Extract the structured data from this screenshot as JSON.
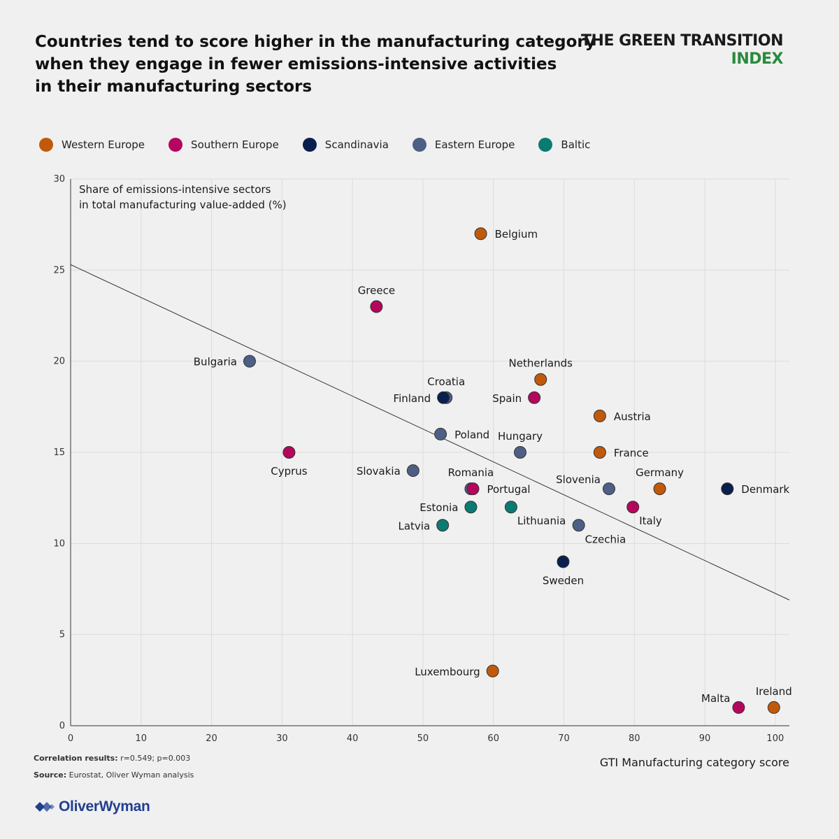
{
  "header": {
    "title_lines": [
      "Countries tend to score higher in the manufacturing category",
      "when they engage in fewer emissions-intensive activities",
      "in their manufacturing sectors"
    ],
    "brand_line1": "THE GREEN TRANSITION",
    "brand_line2": "INDEX"
  },
  "legend": [
    {
      "label": "Western Europe",
      "color": "#c05a0a"
    },
    {
      "label": "Southern Europe",
      "color": "#b5065e"
    },
    {
      "label": "Scandinavia",
      "color": "#0a1f4e"
    },
    {
      "label": "Eastern Europe",
      "color": "#4e5f86"
    },
    {
      "label": "Baltic",
      "color": "#0a7b72"
    }
  ],
  "footer": {
    "correlation_label": "Correlation results:",
    "correlation_value": "r=0.549; p=0.003",
    "source_label": "Source:",
    "source_value": "Eurostat, Oliver Wyman analysis",
    "logo_text": "OliverWyman"
  },
  "chart_data": {
    "type": "scatter",
    "title": "Countries tend to score higher in the manufacturing category when they engage in fewer emissions-intensive activities in their manufacturing sectors",
    "xlabel": "GTI Manufacturing category score",
    "ylabel": "Share of emissions-intensive sectors in total manufacturing value-added (%)",
    "ylabel_lines": [
      "Share of emissions-intensive sectors",
      "in total manufacturing value-added (%)"
    ],
    "xlim": [
      0,
      102
    ],
    "ylim": [
      0,
      30
    ],
    "xticks": [
      0,
      10,
      20,
      30,
      40,
      50,
      60,
      70,
      80,
      90,
      100
    ],
    "yticks": [
      0,
      5,
      10,
      15,
      20,
      25,
      30
    ],
    "grid": true,
    "trendline": {
      "x": [
        0,
        102
      ],
      "y": [
        25.3,
        6.9
      ]
    },
    "colors": {
      "Western Europe": "#c05a0a",
      "Southern Europe": "#b5065e",
      "Scandinavia": "#0a1f4e",
      "Eastern Europe": "#4e5f86",
      "Baltic": "#0a7b72"
    },
    "points": [
      {
        "country": "Belgium",
        "group": "Western Europe",
        "x": 58.2,
        "y": 27.0,
        "label_pos": "right"
      },
      {
        "country": "Greece",
        "group": "Southern Europe",
        "x": 43.4,
        "y": 23.0,
        "label_pos": "top"
      },
      {
        "country": "Bulgaria",
        "group": "Eastern Europe",
        "x": 25.4,
        "y": 20.0,
        "label_pos": "left"
      },
      {
        "country": "Netherlands",
        "group": "Western Europe",
        "x": 66.7,
        "y": 19.0,
        "label_pos": "top"
      },
      {
        "country": "Croatia",
        "group": "Eastern Europe",
        "x": 53.3,
        "y": 18.0,
        "label_pos": "top"
      },
      {
        "country": "Finland",
        "group": "Scandinavia",
        "x": 52.9,
        "y": 18.0,
        "label_pos": "left"
      },
      {
        "country": "Spain",
        "group": "Southern Europe",
        "x": 65.8,
        "y": 18.0,
        "label_pos": "left"
      },
      {
        "country": "Austria",
        "group": "Western Europe",
        "x": 75.1,
        "y": 17.0,
        "label_pos": "right"
      },
      {
        "country": "Poland",
        "group": "Eastern Europe",
        "x": 52.5,
        "y": 16.0,
        "label_pos": "right"
      },
      {
        "country": "Hungary",
        "group": "Eastern Europe",
        "x": 63.8,
        "y": 15.0,
        "label_pos": "top"
      },
      {
        "country": "France",
        "group": "Western Europe",
        "x": 75.1,
        "y": 15.0,
        "label_pos": "right"
      },
      {
        "country": "Cyprus",
        "group": "Southern Europe",
        "x": 31.0,
        "y": 15.0,
        "label_pos": "bottom"
      },
      {
        "country": "Slovakia",
        "group": "Eastern Europe",
        "x": 48.6,
        "y": 14.0,
        "label_pos": "left"
      },
      {
        "country": "Romania",
        "group": "Eastern Europe",
        "x": 56.8,
        "y": 13.0,
        "label_pos": "top"
      },
      {
        "country": "Portugal",
        "group": "Southern Europe",
        "x": 57.1,
        "y": 13.0,
        "label_pos": "right"
      },
      {
        "country": "Slovenia",
        "group": "Eastern Europe",
        "x": 76.4,
        "y": 13.0,
        "label_pos": "topleft"
      },
      {
        "country": "Germany",
        "group": "Western Europe",
        "x": 83.6,
        "y": 13.0,
        "label_pos": "top"
      },
      {
        "country": "Denmark",
        "group": "Scandinavia",
        "x": 93.2,
        "y": 13.0,
        "label_pos": "right"
      },
      {
        "country": "Estonia",
        "group": "Baltic",
        "x": 56.8,
        "y": 12.0,
        "label_pos": "left"
      },
      {
        "country": "Lithuania",
        "group": "Baltic",
        "x": 62.5,
        "y": 12.0,
        "label_pos": "bottomright"
      },
      {
        "country": "Italy",
        "group": "Southern Europe",
        "x": 79.8,
        "y": 12.0,
        "label_pos": "bottomright"
      },
      {
        "country": "Czechia",
        "group": "Eastern Europe",
        "x": 72.1,
        "y": 11.0,
        "label_pos": "bottomright"
      },
      {
        "country": "Latvia",
        "group": "Baltic",
        "x": 52.8,
        "y": 11.0,
        "label_pos": "left"
      },
      {
        "country": "Sweden",
        "group": "Scandinavia",
        "x": 69.9,
        "y": 9.0,
        "label_pos": "bottom"
      },
      {
        "country": "Luxembourg",
        "group": "Western Europe",
        "x": 59.9,
        "y": 3.0,
        "label_pos": "left"
      },
      {
        "country": "Malta",
        "group": "Southern Europe",
        "x": 94.8,
        "y": 1.0,
        "label_pos": "topleft"
      },
      {
        "country": "Ireland",
        "group": "Western Europe",
        "x": 99.8,
        "y": 1.0,
        "label_pos": "top"
      }
    ]
  }
}
